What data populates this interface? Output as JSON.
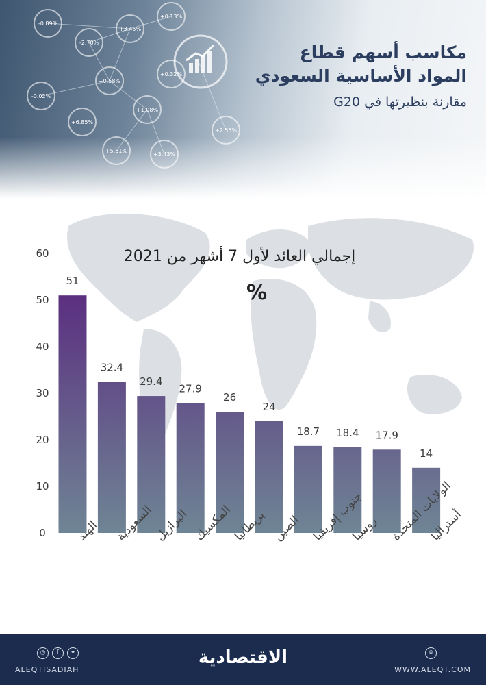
{
  "header": {
    "title_line1": "مكاسب أسهم قطاع",
    "title_line2": "المواد الأساسية السعودي",
    "subtitle": "مقارنة بنظيرتها في G20"
  },
  "hero": {
    "badges": [
      "-0.89%",
      "+3.45%",
      "-2.70%",
      "+0.58%",
      "-0.02%",
      "+1.08%",
      "+5.61%",
      "+0.32%",
      "+2.55%",
      "+6.85%",
      "+0.13%",
      "+3.43%"
    ]
  },
  "chart_data": {
    "type": "bar",
    "title": "إجمالي العائد لأول 7 أشهر من 2021",
    "unit": "%",
    "categories": [
      "الهند",
      "السعودية",
      "البرازيل",
      "المكسيك",
      "بريطانيا",
      "الصين",
      "جنوب إفريقيا",
      "روسيا",
      "الولايات المتحدة",
      "أستراليا"
    ],
    "values": [
      51,
      32.4,
      29.4,
      27.9,
      26,
      24,
      18.7,
      18.4,
      17.9,
      14
    ],
    "value_labels": [
      "51",
      "32.4",
      "29.4",
      "27.9",
      "26",
      "24",
      "18.7",
      "18.4",
      "17.9",
      "14"
    ],
    "ylim": [
      0,
      60
    ],
    "yticks": [
      0,
      10,
      20,
      30,
      40,
      50,
      60
    ],
    "grid": false,
    "colors": {
      "bar_top": "#5b2f80",
      "bar_bottom": "#6f8595"
    }
  },
  "footer": {
    "handle": "ALEQTISADIAH",
    "url": "WWW.ALEQT.COM",
    "logo": "الاقتصادية",
    "background": "#1b2c4e"
  }
}
